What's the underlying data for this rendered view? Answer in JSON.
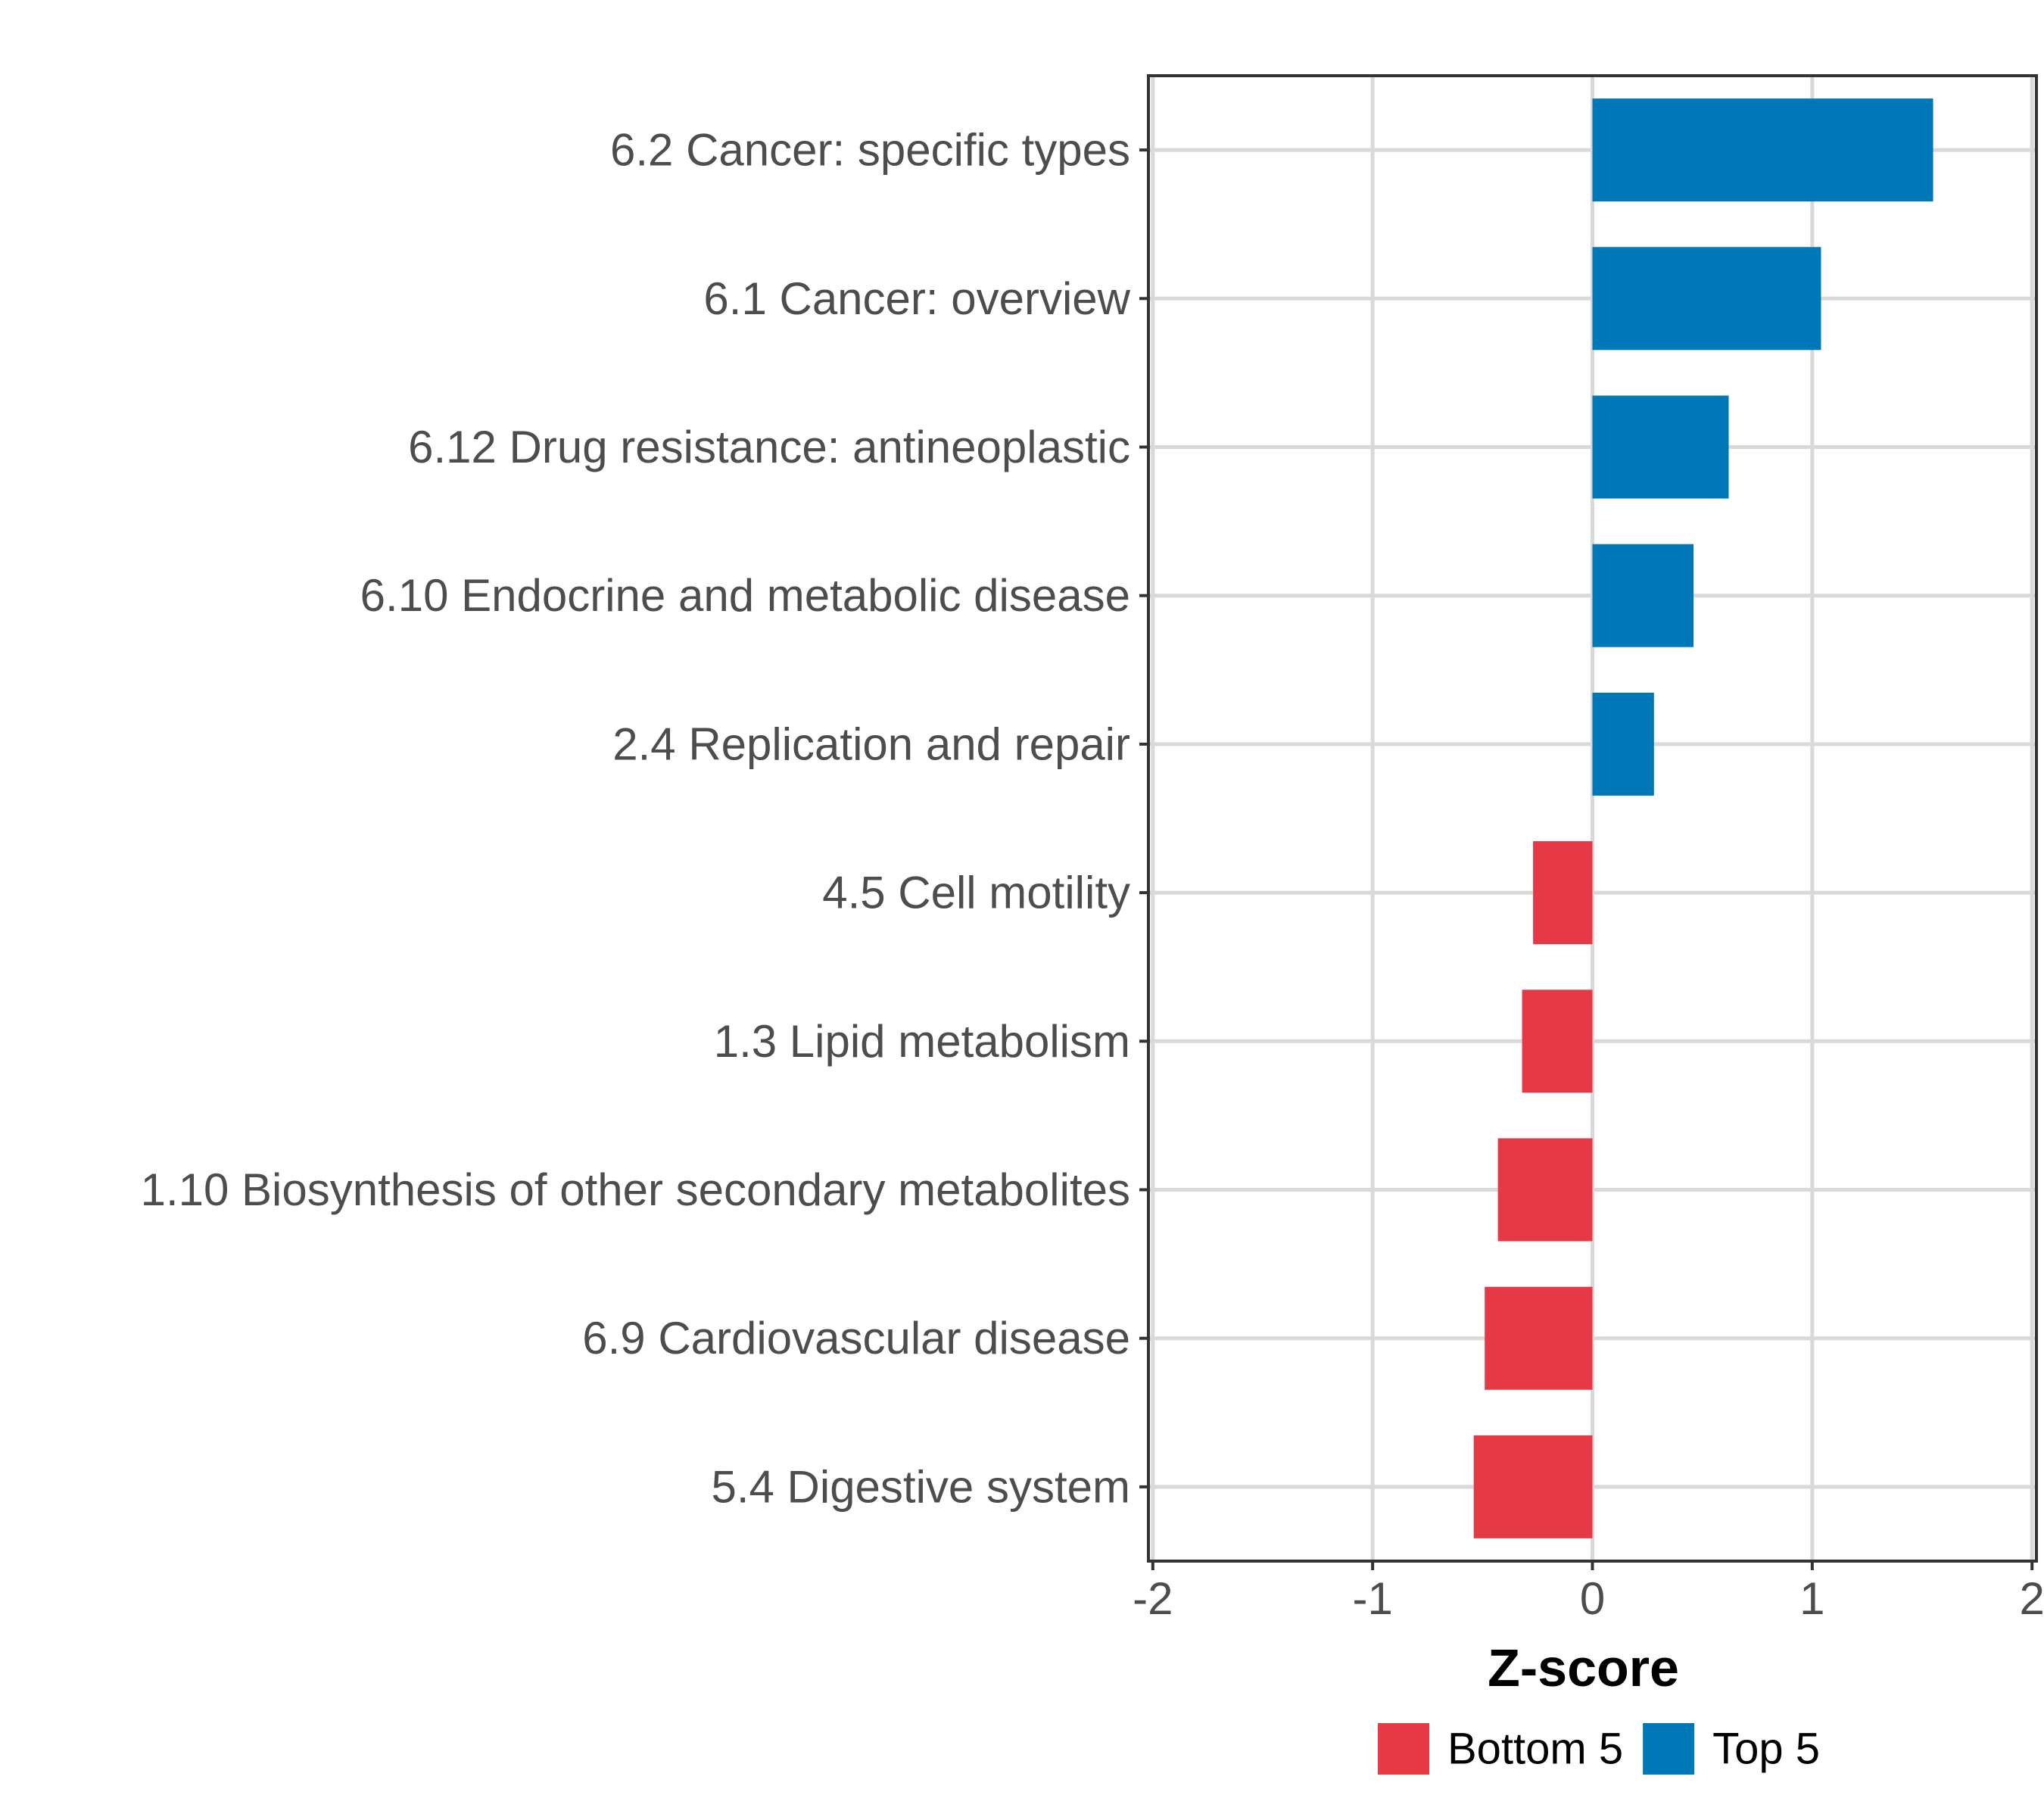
{
  "chart_data": {
    "type": "bar",
    "orientation": "horizontal",
    "categories": [
      "6.2 Cancer: specific types",
      "6.1 Cancer: overview",
      "6.12 Drug resistance: antineoplastic",
      "6.10 Endocrine and metabolic disease",
      "2.4 Replication and repair",
      "4.5 Cell motility",
      "1.3 Lipid metabolism",
      "1.10 Biosynthesis of other secondary metabolites",
      "6.9 Cardiovascular disease",
      "5.4 Digestive system"
    ],
    "values": [
      1.55,
      1.04,
      0.62,
      0.46,
      0.28,
      -0.27,
      -0.32,
      -0.43,
      -0.49,
      -0.54
    ],
    "groups": [
      "Top 5",
      "Top 5",
      "Top 5",
      "Top 5",
      "Top 5",
      "Bottom 5",
      "Bottom 5",
      "Bottom 5",
      "Bottom 5",
      "Bottom 5"
    ],
    "xlabel": "Z-score",
    "ylabel": "",
    "xlim": [
      -2.02,
      2.02
    ],
    "xticks": [
      -2,
      -1,
      0,
      1,
      2
    ],
    "xtick_labels": [
      "-2",
      "-1",
      "0",
      "1",
      "2"
    ],
    "grid": true,
    "legend_position": "bottom",
    "legend": [
      {
        "label": "Bottom 5",
        "color": "#E63946"
      },
      {
        "label": "Top 5",
        "color": "#0077B6"
      }
    ]
  }
}
